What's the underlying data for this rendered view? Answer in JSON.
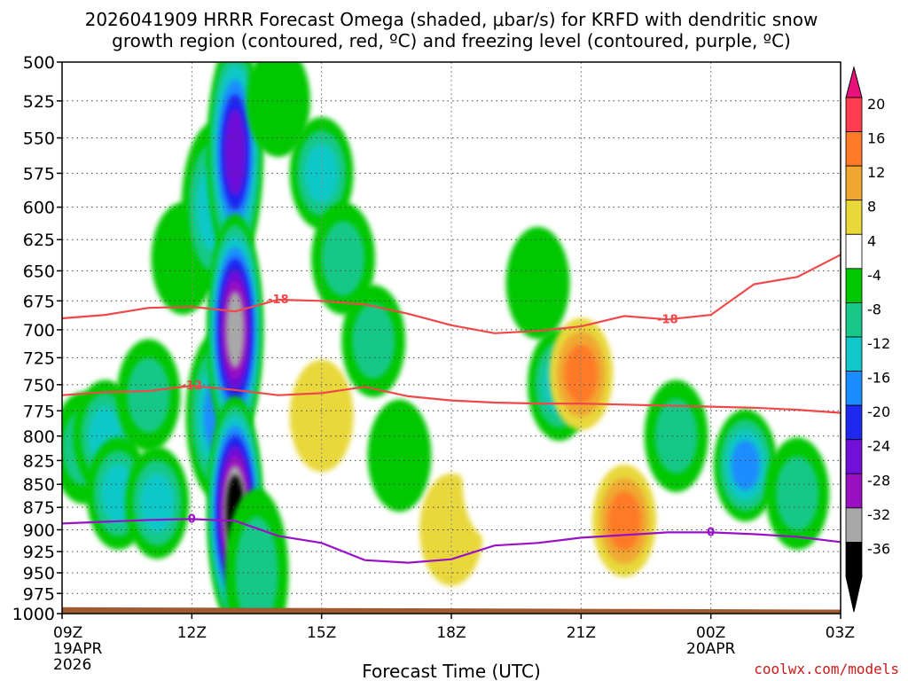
{
  "chart_data": {
    "type": "heatmap",
    "title_line1": "2026041909 HRRR Forecast Omega (shaded, μbar/s) for KRFD with dendritic snow",
    "title_line2": "growth region (contoured, red, ºC) and freezing level (contoured, purple, ºC)",
    "xlabel": "Forecast Time (UTC)",
    "credit": "coolwx.com/models",
    "y_ticks": [
      "500",
      "525",
      "550",
      "575",
      "600",
      "625",
      "650",
      "675",
      "700",
      "725",
      "750",
      "775",
      "800",
      "825",
      "850",
      "875",
      "900",
      "925",
      "950",
      "975",
      "1000"
    ],
    "x_ticks": [
      {
        "hours": 0,
        "label": "09Z",
        "date": "19APR",
        "year": "2026"
      },
      {
        "hours": 3,
        "label": "12Z"
      },
      {
        "hours": 6,
        "label": "15Z"
      },
      {
        "hours": 9,
        "label": "18Z"
      },
      {
        "hours": 12,
        "label": "21Z"
      },
      {
        "hours": 15,
        "label": "00Z",
        "date": "20APR"
      },
      {
        "hours": 18,
        "label": "03Z"
      }
    ],
    "xlim_hours": [
      0,
      18
    ],
    "ylim_hPa": [
      500,
      1000
    ],
    "colorbar": {
      "labels": [
        "20",
        "16",
        "12",
        "8",
        "4",
        "-4",
        "-8",
        "-12",
        "-16",
        "-20",
        "-24",
        "-28",
        "-32",
        "-36"
      ],
      "colors": [
        "#ff3c50",
        "#ff7a28",
        "#f0a830",
        "#e8d83a",
        "#ffffff",
        "#00c800",
        "#18c888",
        "#10c8c8",
        "#1a8cff",
        "#1e28f0",
        "#7010d8",
        "#9810c0",
        "#a8a8a8",
        "#000000"
      ],
      "top_triangle_color": "#e8127a",
      "bottom_triangle_color": "#000000"
    },
    "isotherms": [
      {
        "name": "-18",
        "color": "#f04848",
        "label": "-18",
        "points": [
          [
            0,
            690
          ],
          [
            1,
            687
          ],
          [
            2,
            681
          ],
          [
            3,
            680
          ],
          [
            4,
            684
          ],
          [
            5,
            674
          ],
          [
            6,
            675
          ],
          [
            7,
            678
          ],
          [
            8,
            686
          ],
          [
            9,
            696
          ],
          [
            10,
            703
          ],
          [
            11,
            701
          ],
          [
            12,
            697
          ],
          [
            13,
            688
          ],
          [
            14,
            691
          ],
          [
            15,
            687
          ],
          [
            16,
            661
          ],
          [
            17,
            655
          ],
          [
            18,
            637
          ]
        ]
      },
      {
        "name": "-12",
        "color": "#f04848",
        "label": "-12",
        "points": [
          [
            0,
            760
          ],
          [
            1,
            757
          ],
          [
            2,
            756
          ],
          [
            3,
            751
          ],
          [
            4,
            755
          ],
          [
            5,
            760
          ],
          [
            6,
            758
          ],
          [
            7,
            752
          ],
          [
            8,
            761
          ],
          [
            9,
            765
          ],
          [
            10,
            767
          ],
          [
            11,
            768
          ],
          [
            12,
            768
          ],
          [
            13,
            769
          ],
          [
            14,
            770
          ],
          [
            15,
            771
          ],
          [
            16,
            772
          ],
          [
            17,
            774
          ],
          [
            18,
            777
          ]
        ]
      },
      {
        "name": "0",
        "color": "#9a10c8",
        "label": "0",
        "points": [
          [
            0,
            893
          ],
          [
            1,
            891
          ],
          [
            2,
            889
          ],
          [
            3,
            888
          ],
          [
            4,
            890
          ],
          [
            5,
            907
          ],
          [
            6,
            915
          ],
          [
            7,
            935
          ],
          [
            8,
            938
          ],
          [
            9,
            934
          ],
          [
            10,
            918
          ],
          [
            11,
            915
          ],
          [
            12,
            909
          ],
          [
            13,
            906
          ],
          [
            14,
            903
          ],
          [
            15,
            903
          ],
          [
            16,
            905
          ],
          [
            17,
            908
          ],
          [
            18,
            914
          ]
        ]
      }
    ],
    "ground_hPa": [
      [
        0,
        992
      ],
      [
        6,
        993
      ],
      [
        12,
        994
      ],
      [
        18,
        995
      ]
    ],
    "ground_color": "#a05a32",
    "omega_cells": [
      {
        "h": 0.5,
        "p": 812,
        "v": -10
      },
      {
        "h": 1.0,
        "p": 800,
        "v": -12
      },
      {
        "h": 1.3,
        "p": 860,
        "v": -15
      },
      {
        "h": 2.0,
        "p": 760,
        "v": -10
      },
      {
        "h": 2.2,
        "p": 870,
        "v": -13
      },
      {
        "h": 2.8,
        "p": 640,
        "v": -6
      },
      {
        "h": 3.5,
        "p": 600,
        "v": -14
      },
      {
        "h": 3.6,
        "p": 780,
        "v": -18
      },
      {
        "h": 4.0,
        "p": 560,
        "v": -26
      },
      {
        "h": 4.0,
        "p": 700,
        "v": -34
      },
      {
        "h": 4.0,
        "p": 880,
        "v": -38
      },
      {
        "h": 4.5,
        "p": 950,
        "v": -8
      },
      {
        "h": 5.0,
        "p": 525,
        "v": -6
      },
      {
        "h": 6.0,
        "p": 575,
        "v": -14
      },
      {
        "h": 6.5,
        "p": 640,
        "v": -10
      },
      {
        "h": 6.0,
        "p": 780,
        "v": 6
      },
      {
        "h": 7.2,
        "p": 710,
        "v": -8
      },
      {
        "h": 7.8,
        "p": 820,
        "v": -6
      },
      {
        "h": 9.0,
        "p": 900,
        "v": 6
      },
      {
        "h": 10.0,
        "p": 850,
        "v": 3
      },
      {
        "h": 11.0,
        "p": 660,
        "v": -6
      },
      {
        "h": 11.5,
        "p": 750,
        "v": -14
      },
      {
        "h": 12.0,
        "p": 740,
        "v": 13
      },
      {
        "h": 13.0,
        "p": 890,
        "v": 12
      },
      {
        "h": 14.2,
        "p": 800,
        "v": -8
      },
      {
        "h": 15.8,
        "p": 830,
        "v": -16
      },
      {
        "h": 17.0,
        "p": 860,
        "v": -9
      }
    ]
  }
}
